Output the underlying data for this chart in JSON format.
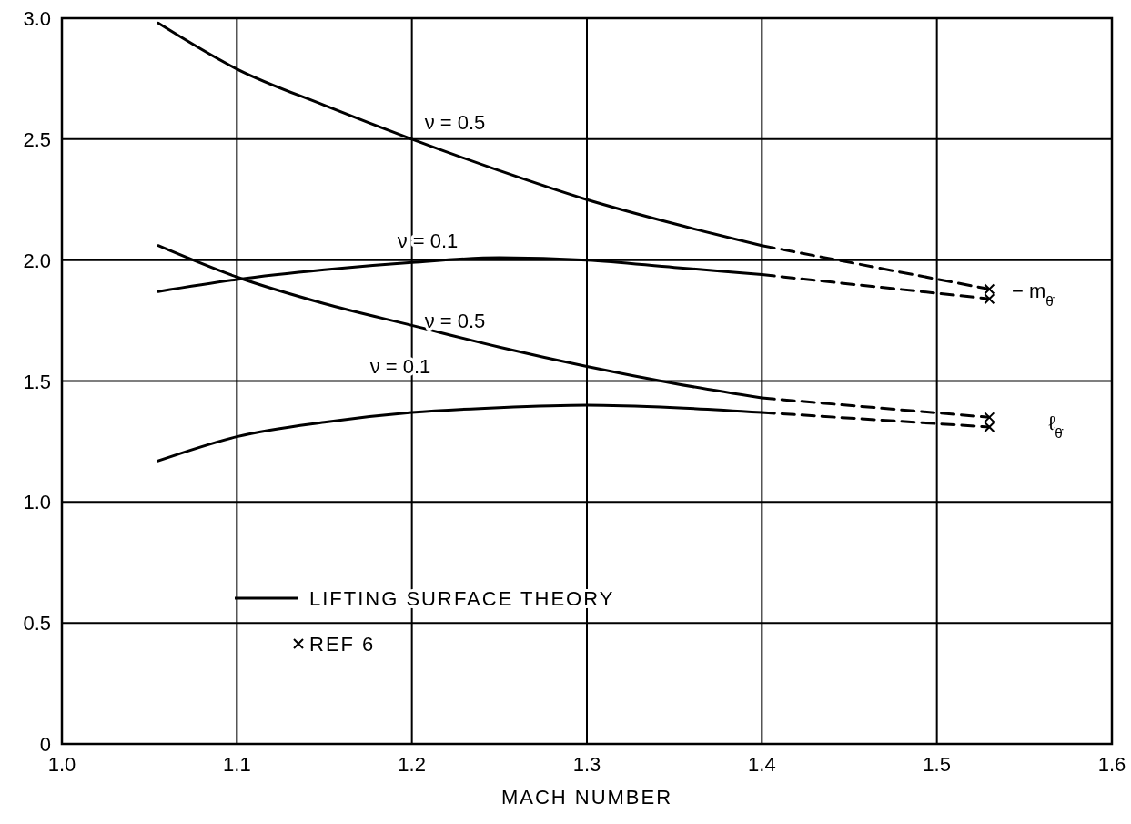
{
  "chart_data": {
    "type": "line",
    "xlabel": "MACH NUMBER",
    "xlim": [
      1.0,
      1.6
    ],
    "xticks": [
      {
        "value": 1.0,
        "label": "1.0"
      },
      {
        "value": 1.1,
        "label": "1.1"
      },
      {
        "value": 1.2,
        "label": "1.2"
      },
      {
        "value": 1.3,
        "label": "1.3"
      },
      {
        "value": 1.4,
        "label": "1.4"
      },
      {
        "value": 1.5,
        "label": "1.5"
      },
      {
        "value": 1.6,
        "label": "1.6"
      }
    ],
    "ylim": [
      0,
      3.0
    ],
    "yticks": [
      0,
      {
        "value": 0.5,
        "label": "0.5"
      },
      {
        "value": 1.0,
        "label": "1.0"
      },
      {
        "value": 1.5,
        "label": "1.5"
      },
      {
        "value": 2.0,
        "label": "2.0"
      },
      {
        "value": 2.5,
        "label": "2.5"
      },
      {
        "value": 3.0,
        "label": "3.0"
      }
    ],
    "grid": true,
    "legend": "bottom left",
    "line_style": "solid",
    "marker": "none",
    "series": [
      {
        "name": "LIFTING SURFACE THEORY",
        "color": "#000000",
        "x": [
          1.055,
          1.1,
          1.15,
          1.2,
          1.25,
          1.3,
          1.35,
          1.4
        ],
        "values": [
          2.98,
          2.79,
          2.64,
          2.5,
          2.37,
          2.25,
          2.15,
          2.06
        ]
      },
      {
        "color": "#000000",
        "x": [
          1.055,
          1.1,
          1.15,
          1.2,
          1.25,
          1.3,
          1.35,
          1.4
        ],
        "values": [
          1.87,
          1.92,
          1.96,
          1.99,
          2.01,
          2.0,
          1.97,
          1.94
        ]
      },
      {
        "color": "#000000",
        "x": [
          1.055,
          1.1,
          1.15,
          1.2,
          1.25,
          1.3,
          1.35,
          1.4
        ],
        "values": [
          2.06,
          1.93,
          1.82,
          1.73,
          1.64,
          1.56,
          1.49,
          1.43
        ]
      },
      {
        "color": "#000000",
        "x": [
          1.055,
          1.1,
          1.15,
          1.2,
          1.25,
          1.3,
          1.35,
          1.4
        ],
        "values": [
          1.17,
          1.27,
          1.33,
          1.37,
          1.39,
          1.4,
          1.39,
          1.37
        ]
      },
      {
        "color": "#000000",
        "line_style": "dashed",
        "x": [
          1.4,
          1.53
        ],
        "values": [
          2.06,
          1.88
        ]
      },
      {
        "color": "#000000",
        "line_style": "dashed",
        "x": [
          1.4,
          1.53
        ],
        "values": [
          1.94,
          1.84
        ]
      },
      {
        "color": "#000000",
        "line_style": "dashed",
        "x": [
          1.4,
          1.53
        ],
        "values": [
          1.43,
          1.35
        ]
      },
      {
        "color": "#000000",
        "line_style": "dashed",
        "x": [
          1.4,
          1.53
        ],
        "values": [
          1.37,
          1.31
        ]
      },
      {
        "name": "REF 6",
        "type": "scatter",
        "marker": "cross",
        "color": "#000000",
        "x": [
          1.53,
          1.53,
          1.53,
          1.53
        ],
        "values": [
          1.88,
          1.84,
          1.35,
          1.31
        ]
      }
    ],
    "annotations": [
      "ν = 0.5",
      "ν = 0.1",
      "ν = 0.5",
      "ν = 0.1",
      "− m$_{θ̇}$",
      "ℓ$_{θ̇}$"
    ]
  }
}
